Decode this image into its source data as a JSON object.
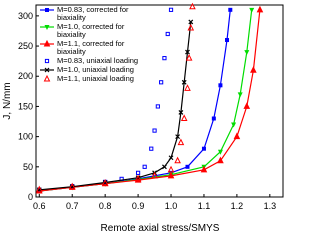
{
  "chart_data": {
    "type": "line",
    "x_label": "Remote axial stress/SMYS",
    "y_label": "J, N/mm",
    "xlim": [
      0.59,
      1.34
    ],
    "ylim": [
      0,
      318
    ],
    "xticks": [
      {
        "value": 0.6,
        "label": "0.6"
      },
      {
        "value": 0.7,
        "label": "0.7"
      },
      {
        "value": 0.8,
        "label": "0.8"
      },
      {
        "value": 0.9,
        "label": "0.9"
      },
      {
        "value": 1.0,
        "label": "1.0"
      },
      {
        "value": 1.1,
        "label": "1.1"
      },
      {
        "value": 1.2,
        "label": "1.2"
      },
      {
        "value": 1.3,
        "label": "1.3"
      }
    ],
    "yticks": [
      0,
      50,
      100,
      150,
      200,
      250,
      300
    ],
    "series": [
      {
        "name": "M=0.83, corrected for biaxiality",
        "color": "#0000ff",
        "marker": "square",
        "line": "solid",
        "x": [
          0.6,
          0.7,
          0.8,
          0.9,
          1.0,
          1.05,
          1.1,
          1.13,
          1.15,
          1.17,
          1.18
        ],
        "values": [
          10,
          16,
          22,
          30,
          40,
          50,
          80,
          130,
          185,
          260,
          310
        ]
      },
      {
        "name": "M=1.0, corrected for biaxiality",
        "color": "#00dd00",
        "marker": "triangle-down",
        "line": "solid",
        "x": [
          0.6,
          0.7,
          0.8,
          0.9,
          1.0,
          1.1,
          1.15,
          1.19,
          1.21,
          1.23,
          1.245
        ],
        "values": [
          10,
          16,
          22,
          29,
          37,
          50,
          75,
          120,
          170,
          240,
          310
        ]
      },
      {
        "name": "M=1.1, corrected for biaxiality",
        "color": "#ff0000",
        "marker": "triangle",
        "line": "solid",
        "x": [
          0.6,
          0.7,
          0.8,
          0.9,
          1.0,
          1.1,
          1.15,
          1.2,
          1.23,
          1.25,
          1.27
        ],
        "values": [
          10,
          16,
          22,
          28,
          35,
          45,
          60,
          100,
          150,
          210,
          310
        ]
      },
      {
        "name": "M=0.83, uniaxial loading",
        "color": "#0000ff",
        "marker": "square-open",
        "line": "dotted",
        "x": [
          0.6,
          0.7,
          0.8,
          0.85,
          0.9,
          0.92,
          0.94,
          0.95,
          0.96,
          0.97,
          0.98,
          0.99,
          1.0
        ],
        "values": [
          12,
          18,
          25,
          30,
          40,
          50,
          80,
          110,
          150,
          190,
          230,
          270,
          310
        ]
      },
      {
        "name": "M=1.0, uniaxial loading",
        "color": "#000000",
        "marker": "x",
        "line": "solid",
        "x": [
          0.6,
          0.7,
          0.8,
          0.9,
          0.95,
          0.98,
          1.0,
          1.02,
          1.03,
          1.04,
          1.05,
          1.06
        ],
        "values": [
          12,
          17,
          24,
          32,
          40,
          50,
          65,
          100,
          140,
          190,
          240,
          290
        ]
      },
      {
        "name": "M=1.1, uniaxial loading",
        "color": "#ff0000",
        "marker": "triangle-open",
        "line": "none",
        "x": [
          0.6,
          0.7,
          0.8,
          0.9,
          0.95,
          1.0,
          1.02,
          1.03,
          1.04,
          1.05,
          1.055,
          1.06,
          1.065
        ],
        "values": [
          12,
          17,
          23,
          30,
          35,
          45,
          60,
          90,
          130,
          180,
          230,
          280,
          315
        ]
      }
    ]
  }
}
